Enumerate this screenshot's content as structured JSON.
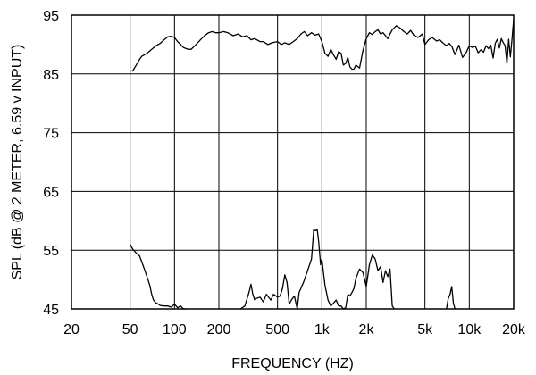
{
  "chart_data": {
    "type": "line",
    "xlabel": "FREQUENCY (HZ)",
    "ylabel": "SPL (dB @ 2 METER, 6.59 v INPUT)",
    "xscale": "log",
    "xlim": [
      20,
      20000
    ],
    "ylim": [
      45,
      95
    ],
    "grid": true,
    "x_tick_labels": [
      "20",
      "50",
      "100",
      "200",
      "500",
      "1k",
      "2k",
      "5k",
      "10k",
      "20k"
    ],
    "x_tick_values": [
      20,
      50,
      100,
      200,
      500,
      1000,
      2000,
      5000,
      10000,
      20000
    ],
    "y_tick_labels": [
      "45",
      "55",
      "65",
      "75",
      "85",
      "95"
    ],
    "y_tick_values": [
      45,
      55,
      65,
      75,
      85,
      95
    ],
    "series": [
      {
        "x": [
          50,
          52,
          55,
          58,
          60,
          65,
          70,
          75,
          80,
          85,
          90,
          95,
          100,
          105,
          110,
          115,
          120,
          125,
          130,
          140,
          150,
          160,
          170,
          180,
          190,
          200,
          215,
          230,
          250,
          270,
          290,
          310,
          330,
          350,
          380,
          400,
          430,
          460,
          500,
          530,
          560,
          600,
          640,
          680,
          720,
          760,
          800,
          850,
          900,
          950,
          1000,
          1050,
          1100,
          1150,
          1200,
          1250,
          1300,
          1350,
          1400,
          1450,
          1500,
          1550,
          1600,
          1650,
          1700,
          1800,
          1900,
          2000,
          2100,
          2200,
          2300,
          2400,
          2500,
          2600,
          2700,
          2800,
          2900,
          3000,
          3200,
          3400,
          3600,
          3800,
          4000,
          4200,
          4500,
          4800,
          5000,
          5300,
          5600,
          6000,
          6300,
          6600,
          7000,
          7300,
          7600,
          8000,
          8500,
          9000,
          9500,
          10000,
          10500,
          11000,
          11500,
          12000,
          12500,
          13000,
          13500,
          14000,
          14500,
          15000,
          15500,
          16000,
          16500,
          17000,
          17500,
          18000,
          18500,
          19000,
          19500,
          20000
        ],
        "y": [
          85.5,
          85.5,
          86.5,
          87.5,
          88,
          88.5,
          89.2,
          89.8,
          90.2,
          90.8,
          91.3,
          91.4,
          91.2,
          90.5,
          90.0,
          89.5,
          89.3,
          89.2,
          89.2,
          90,
          90.8,
          91.5,
          92,
          92.2,
          92,
          92,
          92.2,
          92,
          91.5,
          91.8,
          91.3,
          91.5,
          90.8,
          91.0,
          90.5,
          90.5,
          90,
          90.3,
          90.5,
          90,
          90.3,
          90,
          90.5,
          91,
          91.8,
          92.2,
          91.5,
          92,
          91.6,
          91.8,
          90.5,
          88.5,
          88,
          89.2,
          88.2,
          87.5,
          88.8,
          88.5,
          86.5,
          86.8,
          87.8,
          86.2,
          85.8,
          85.8,
          86.5,
          86,
          89,
          91,
          92,
          91.7,
          92.2,
          92.5,
          91.8,
          92,
          91.5,
          91,
          91.8,
          92.5,
          93.2,
          92.8,
          92.2,
          91.8,
          92.4,
          91.6,
          91.2,
          91.8,
          90,
          90.8,
          91.2,
          90.6,
          90.8,
          90.3,
          89.8,
          90.2,
          89.7,
          88.3,
          89.9,
          87.8,
          88.6,
          89.8,
          89.5,
          89.7,
          88.6,
          89.1,
          88.7,
          89.8,
          89.3,
          89.9,
          87.7,
          90.2,
          90.9,
          89.4,
          91.0,
          90.3,
          89.8,
          86.8,
          90.9,
          87.9,
          91.0,
          94.3
        ]
      },
      {
        "x": [
          50,
          52,
          55,
          58,
          60,
          62,
          65,
          68,
          70,
          72,
          75,
          78,
          80,
          85,
          90,
          95,
          100,
          105,
          110,
          115,
          120
        ],
        "y": [
          56,
          55.2,
          54.5,
          54,
          53,
          52,
          50.5,
          49,
          47.5,
          46.5,
          46,
          45.8,
          45.6,
          45.5,
          45.5,
          45.3,
          45.8,
          45.2,
          45.5,
          45.0,
          45.0
        ]
      },
      {
        "x": [
          280,
          300,
          320,
          330,
          340,
          350,
          360,
          380,
          400,
          420,
          450,
          470,
          500,
          520,
          540,
          560,
          580,
          600,
          620,
          650,
          680,
          700,
          750,
          800,
          850,
          880,
          900,
          930,
          950,
          980,
          1000
        ],
        "y": [
          45,
          45.5,
          47.8,
          49.2,
          47.5,
          46.5,
          46.8,
          47.0,
          46.2,
          47.5,
          46.5,
          47.5,
          47.0,
          47.2,
          48.5,
          50.8,
          49.5,
          45.8,
          46.5,
          47.2,
          45.0,
          47.8,
          49.5,
          51.5,
          53.5,
          58.5,
          58.3,
          58.5,
          56.5,
          52.5,
          53.5
        ]
      },
      {
        "x": [
          1000,
          1050,
          1100,
          1150,
          1200,
          1250,
          1300,
          1350,
          1400,
          1450,
          1500,
          1550,
          1600,
          1650,
          1700,
          1800,
          1900,
          2000,
          2100,
          2200,
          2300,
          2400,
          2500,
          2600,
          2700,
          2800,
          2900,
          3000,
          3100
        ],
        "y": [
          53.5,
          49,
          46.5,
          45.5,
          46,
          46.5,
          45.5,
          45.5,
          45.0,
          45.2,
          47.5,
          47.2,
          47.8,
          48.5,
          50.2,
          51.8,
          51.2,
          48.8,
          52.5,
          54.2,
          53.5,
          51.5,
          52.2,
          49.5,
          51.5,
          50.5,
          51.8,
          45.5,
          45.0
        ]
      },
      {
        "x": [
          7000,
          7200,
          7400,
          7600,
          7800,
          8000
        ],
        "y": [
          45.0,
          46.8,
          47.5,
          48.8,
          46.0,
          45.0
        ]
      }
    ]
  }
}
